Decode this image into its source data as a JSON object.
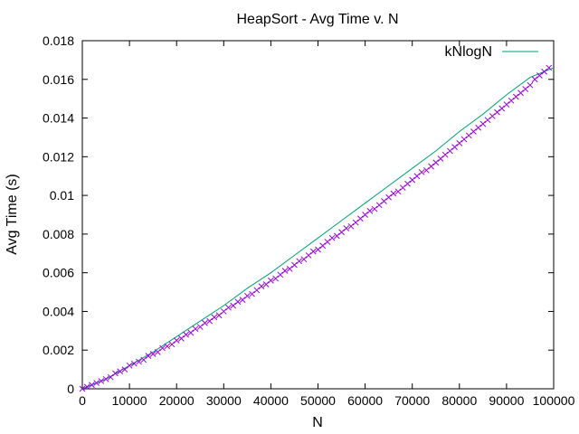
{
  "chart_data": {
    "type": "line",
    "title": "HeapSort - Avg Time v. N",
    "xlabel": "N",
    "ylabel": "Avg Time (s)",
    "xlim": [
      0,
      100000
    ],
    "ylim": [
      0,
      0.018
    ],
    "x_ticks": [
      "0",
      "10000",
      "20000",
      "30000",
      "40000",
      "50000",
      "60000",
      "70000",
      "80000",
      "90000",
      "100000"
    ],
    "x_tick_values": [
      0,
      10000,
      20000,
      30000,
      40000,
      50000,
      60000,
      70000,
      80000,
      90000,
      100000
    ],
    "y_ticks": [
      "0",
      "0.002",
      "0.004",
      "0.006",
      "0.008",
      "0.01",
      "0.012",
      "0.014",
      "0.016",
      "0.018"
    ],
    "y_tick_values": [
      0,
      0.002,
      0.004,
      0.006,
      0.008,
      0.01,
      0.012,
      0.014,
      0.016,
      0.018
    ],
    "grid": false,
    "legend_position": "top-right",
    "series": [
      {
        "marker": "x",
        "line": false,
        "color": "#9400d3",
        "x": [
          0,
          1000,
          2000,
          3000,
          4000,
          5000,
          6000,
          7000,
          8000,
          9000,
          10000,
          11000,
          12000,
          13000,
          14000,
          15000,
          16000,
          17000,
          18000,
          19000,
          20000,
          21000,
          22000,
          23000,
          24000,
          25000,
          26000,
          27000,
          28000,
          29000,
          30000,
          31000,
          32000,
          33000,
          34000,
          35000,
          36000,
          37000,
          38000,
          39000,
          40000,
          41000,
          42000,
          43000,
          44000,
          45000,
          46000,
          47000,
          48000,
          49000,
          50000,
          51000,
          52000,
          53000,
          54000,
          55000,
          56000,
          57000,
          58000,
          59000,
          60000,
          61000,
          62000,
          63000,
          64000,
          65000,
          66000,
          67000,
          68000,
          69000,
          70000,
          71000,
          72000,
          73000,
          74000,
          75000,
          76000,
          77000,
          78000,
          79000,
          80000,
          81000,
          82000,
          83000,
          84000,
          85000,
          86000,
          87000,
          88000,
          89000,
          90000,
          91000,
          92000,
          93000,
          94000,
          95000,
          96000,
          97000,
          98000,
          99000
        ],
        "values": [
          0.0,
          0.0001,
          0.0002,
          0.0003,
          0.0004,
          0.0005,
          0.0006,
          0.0008,
          0.0009,
          0.001,
          0.0012,
          0.0013,
          0.0014,
          0.0015,
          0.0017,
          0.0018,
          0.0019,
          0.0021,
          0.0022,
          0.0023,
          0.0025,
          0.0026,
          0.0028,
          0.0029,
          0.0031,
          0.0032,
          0.0034,
          0.0035,
          0.0037,
          0.0038,
          0.004,
          0.0042,
          0.0043,
          0.0045,
          0.0046,
          0.0048,
          0.0049,
          0.0051,
          0.0053,
          0.0054,
          0.0056,
          0.0057,
          0.0059,
          0.0061,
          0.0062,
          0.0064,
          0.0066,
          0.0067,
          0.0069,
          0.0071,
          0.0072,
          0.0074,
          0.0076,
          0.0078,
          0.0079,
          0.0081,
          0.0083,
          0.0084,
          0.0086,
          0.0088,
          0.009,
          0.0092,
          0.0093,
          0.0095,
          0.0097,
          0.0099,
          0.0101,
          0.0102,
          0.0104,
          0.0106,
          0.0108,
          0.011,
          0.0112,
          0.0113,
          0.0115,
          0.0117,
          0.0119,
          0.0121,
          0.0123,
          0.0125,
          0.0127,
          0.0129,
          0.0131,
          0.0133,
          0.0135,
          0.0137,
          0.0139,
          0.0141,
          0.0143,
          0.0145,
          0.0147,
          0.0149,
          0.0151,
          0.0153,
          0.0155,
          0.0157,
          0.016,
          0.0162,
          0.0164,
          0.0166
        ]
      },
      {
        "name": "kNlogN",
        "marker": "none",
        "line": true,
        "color": "#009e73",
        "x": [
          0,
          5000,
          10000,
          15000,
          20000,
          25000,
          30000,
          35000,
          40000,
          45000,
          50000,
          55000,
          60000,
          65000,
          70000,
          75000,
          80000,
          85000,
          90000,
          95000,
          100000
        ],
        "values": [
          0.0,
          0.0005,
          0.0012,
          0.0019,
          0.0027,
          0.0035,
          0.0043,
          0.0052,
          0.006,
          0.0069,
          0.0078,
          0.0087,
          0.0096,
          0.0105,
          0.0114,
          0.0123,
          0.0133,
          0.0142,
          0.0152,
          0.0161,
          0.0166
        ]
      }
    ]
  }
}
